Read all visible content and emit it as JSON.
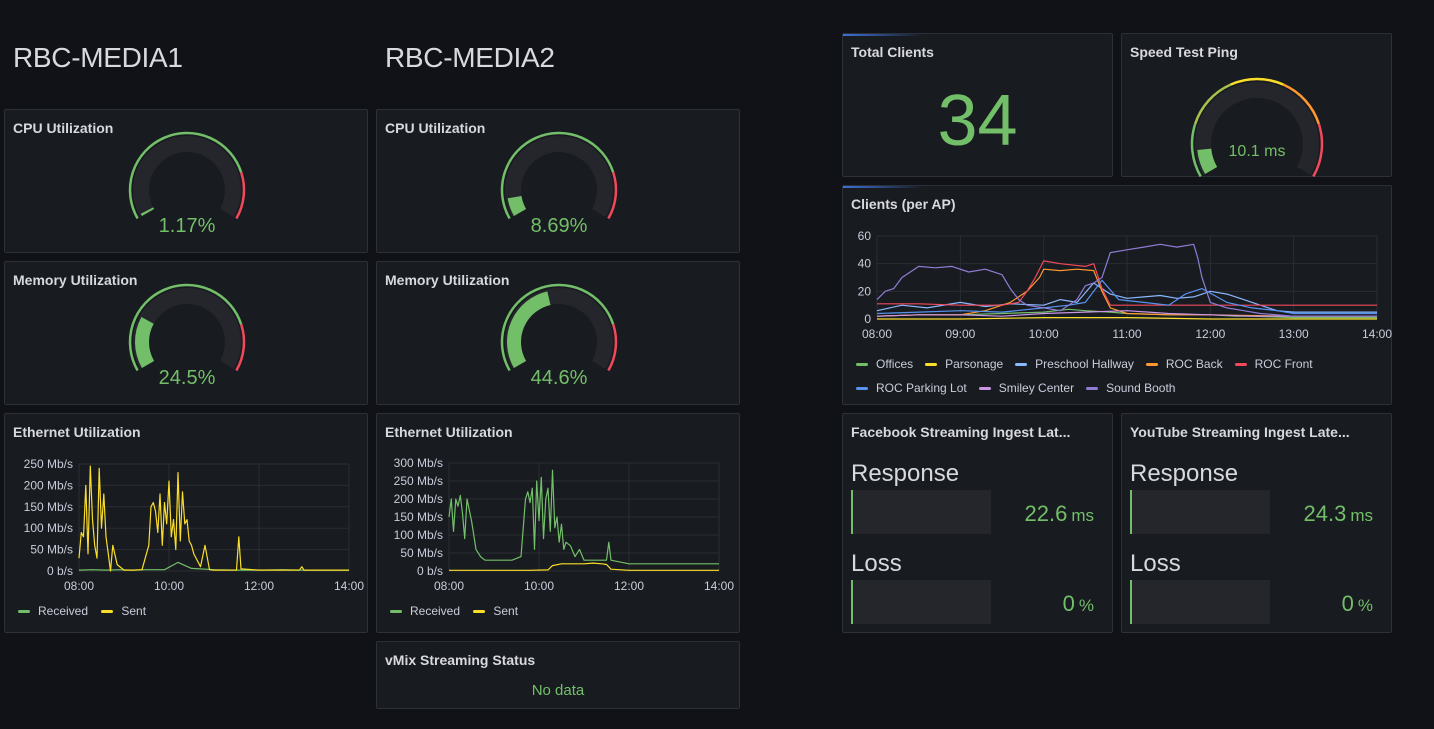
{
  "headings": {
    "media1": "RBC-MEDIA1",
    "media2": "RBC-MEDIA2"
  },
  "colors": {
    "green": "#73bf69",
    "red": "#f2495c",
    "orange": "#ff9830",
    "yellow": "#fade2a",
    "blue": "#8ab8ff"
  },
  "media1": {
    "cpu": {
      "title": "CPU Utilization",
      "value": 1.17,
      "display": "1.17%"
    },
    "mem": {
      "title": "Memory Utilization",
      "value": 24.5,
      "display": "24.5%"
    },
    "eth": {
      "title": "Ethernet Utilization",
      "chart_data": {
        "type": "line",
        "x_ticks": [
          "08:00",
          "10:00",
          "12:00",
          "14:00"
        ],
        "y_ticks": [
          "0 b/s",
          "50 Mb/s",
          "100 Mb/s",
          "150 Mb/s",
          "200 Mb/s",
          "250 Mb/s"
        ],
        "ylim": [
          0,
          250
        ],
        "xlim_hours": [
          8,
          14
        ],
        "series": [
          {
            "name": "Received",
            "color": "#73bf69",
            "x": [
              8.0,
              8.3,
              8.6,
              8.9,
              9.2,
              9.5,
              9.9,
              10.2,
              10.5,
              11.0,
              11.5,
              12.0,
              12.5,
              13.0,
              13.5,
              14.0
            ],
            "y": [
              2,
              3,
              2,
              3,
              2,
              3,
              3,
              20,
              6,
              3,
              2,
              2,
              3,
              2,
              2,
              2
            ]
          },
          {
            "name": "Sent",
            "color": "#fade2a",
            "x": [
              8.0,
              8.05,
              8.1,
              8.15,
              8.2,
              8.25,
              8.3,
              8.35,
              8.4,
              8.45,
              8.5,
              8.55,
              8.6,
              8.65,
              8.7,
              8.75,
              8.85,
              9.0,
              9.2,
              9.4,
              9.55,
              9.6,
              9.65,
              9.7,
              9.75,
              9.8,
              9.85,
              9.9,
              9.95,
              10.0,
              10.05,
              10.1,
              10.15,
              10.2,
              10.25,
              10.3,
              10.35,
              10.4,
              10.45,
              10.5,
              10.55,
              10.7,
              10.8,
              10.9,
              11.0,
              11.3,
              11.5,
              11.55,
              11.6,
              12.0,
              12.5,
              12.9,
              12.95,
              13.0,
              13.5,
              14.0
            ],
            "y": [
              30,
              90,
              80,
              200,
              40,
              245,
              120,
              60,
              30,
              240,
              100,
              180,
              80,
              40,
              0,
              60,
              15,
              2,
              2,
              3,
              60,
              150,
              160,
              140,
              90,
              180,
              60,
              160,
              110,
              210,
              80,
              120,
              50,
              230,
              70,
              185,
              110,
              120,
              70,
              60,
              40,
              10,
              60,
              3,
              2,
              2,
              2,
              80,
              5,
              2,
              2,
              2,
              10,
              2,
              2,
              2
            ]
          }
        ]
      }
    }
  },
  "media2": {
    "cpu": {
      "title": "CPU Utilization",
      "value": 8.69,
      "display": "8.69%"
    },
    "mem": {
      "title": "Memory Utilization",
      "value": 44.6,
      "display": "44.6%"
    },
    "eth": {
      "title": "Ethernet Utilization",
      "chart_data": {
        "type": "line",
        "x_ticks": [
          "08:00",
          "10:00",
          "12:00",
          "14:00"
        ],
        "y_ticks": [
          "0 b/s",
          "50 Mb/s",
          "100 Mb/s",
          "150 Mb/s",
          "200 Mb/s",
          "250 Mb/s",
          "300 Mb/s"
        ],
        "ylim": [
          0,
          300
        ],
        "xlim_hours": [
          8,
          14
        ],
        "series": [
          {
            "name": "Received",
            "color": "#73bf69",
            "x": [
              8.0,
              8.05,
              8.1,
              8.15,
              8.2,
              8.25,
              8.3,
              8.35,
              8.4,
              8.5,
              8.6,
              8.7,
              8.8,
              9.0,
              9.2,
              9.4,
              9.6,
              9.7,
              9.75,
              9.8,
              9.85,
              9.9,
              9.95,
              10.0,
              10.05,
              10.1,
              10.15,
              10.2,
              10.25,
              10.3,
              10.35,
              10.4,
              10.45,
              10.5,
              10.55,
              10.6,
              10.7,
              10.8,
              10.9,
              11.0,
              11.2,
              11.4,
              11.5,
              11.55,
              11.6,
              12.0,
              13.0,
              14.0
            ],
            "y": [
              150,
              200,
              110,
              200,
              180,
              210,
              160,
              90,
              200,
              140,
              60,
              40,
              30,
              30,
              30,
              30,
              40,
              200,
              220,
              190,
              230,
              60,
              250,
              140,
              260,
              90,
              200,
              230,
              110,
              280,
              120,
              150,
              80,
              130,
              60,
              80,
              70,
              40,
              60,
              30,
              30,
              30,
              30,
              80,
              30,
              20,
              20,
              20
            ]
          },
          {
            "name": "Sent",
            "color": "#fade2a",
            "x": [
              8.0,
              9.0,
              9.8,
              10.2,
              10.3,
              10.5,
              10.8,
              11.0,
              11.2,
              11.4,
              11.5,
              11.6,
              12.0,
              13.0,
              14.0
            ],
            "y": [
              2,
              2,
              2,
              3,
              15,
              20,
              20,
              20,
              22,
              20,
              18,
              5,
              2,
              2,
              2
            ]
          }
        ]
      }
    },
    "vmix": {
      "title": "vMix Streaming Status",
      "value": "No data"
    }
  },
  "total_clients": {
    "title": "Total Clients",
    "value": "34"
  },
  "ping": {
    "title": "Speed Test Ping",
    "value": 10.1,
    "display": "10.1 ms",
    "max": 100
  },
  "clients_per_ap": {
    "title": "Clients (per AP)",
    "chart_data": {
      "type": "line",
      "x_ticks": [
        "08:00",
        "09:00",
        "10:00",
        "11:00",
        "12:00",
        "13:00",
        "14:00"
      ],
      "y_ticks": [
        "0",
        "20",
        "40",
        "60"
      ],
      "ylim": [
        0,
        60
      ],
      "xlim_hours": [
        8,
        14
      ],
      "series": [
        {
          "name": "Offices",
          "color": "#73bf69",
          "x": [
            8.0,
            8.5,
            9.0,
            9.5,
            10.0,
            10.3,
            10.5,
            10.8,
            11.0,
            11.5,
            12.0,
            12.3,
            12.5,
            13.0,
            14.0
          ],
          "y": [
            2,
            3,
            3,
            4,
            5,
            7,
            6,
            5,
            4,
            3,
            3,
            2,
            2,
            1,
            1
          ]
        },
        {
          "name": "Parsonage",
          "color": "#fade2a",
          "x": [
            8.0,
            9.0,
            10.0,
            11.0,
            12.0,
            13.0,
            14.0
          ],
          "y": [
            0,
            0,
            1,
            1,
            0,
            0,
            0
          ]
        },
        {
          "name": "Preschool Hallway",
          "color": "#8ab8ff",
          "x": [
            8.0,
            8.3,
            8.6,
            9.0,
            9.3,
            9.6,
            10.0,
            10.2,
            10.4,
            10.6,
            10.8,
            11.0,
            11.2,
            11.4,
            11.6,
            11.8,
            12.0,
            12.2,
            12.4,
            12.6,
            12.8,
            13.0,
            14.0
          ],
          "y": [
            6,
            10,
            8,
            12,
            9,
            11,
            10,
            14,
            12,
            26,
            18,
            15,
            16,
            17,
            15,
            16,
            20,
            18,
            14,
            10,
            6,
            5,
            5
          ]
        },
        {
          "name": "ROC Back",
          "color": "#ff9830",
          "x": [
            8.0,
            8.5,
            9.0,
            9.3,
            9.6,
            9.8,
            9.95,
            10.0,
            10.2,
            10.4,
            10.6,
            10.7,
            10.8,
            11.0,
            11.5,
            12.0,
            13.0,
            14.0
          ],
          "y": [
            2,
            3,
            3,
            6,
            12,
            20,
            30,
            36,
            35,
            36,
            35,
            20,
            8,
            4,
            3,
            3,
            2,
            2
          ]
        },
        {
          "name": "ROC Front",
          "color": "#f2495c",
          "x": [
            8.0,
            8.5,
            9.0,
            9.5,
            9.7,
            9.8,
            9.9,
            10.0,
            10.2,
            10.5,
            10.6,
            10.7,
            10.8,
            11.0,
            11.5,
            12.0,
            12.5,
            13.0,
            14.0
          ],
          "y": [
            11,
            11,
            10,
            10,
            12,
            20,
            30,
            42,
            40,
            38,
            40,
            22,
            10,
            10,
            10,
            10,
            10,
            10,
            10
          ]
        },
        {
          "name": "ROC Parking Lot",
          "color": "#5794f2",
          "x": [
            8.0,
            8.5,
            9.0,
            9.5,
            10.0,
            10.3,
            10.5,
            10.7,
            10.9,
            11.2,
            11.5,
            11.7,
            11.9,
            12.2,
            12.5,
            12.8,
            13.0,
            14.0
          ],
          "y": [
            4,
            5,
            6,
            5,
            8,
            10,
            12,
            28,
            14,
            12,
            10,
            18,
            22,
            12,
            8,
            6,
            4,
            4
          ]
        },
        {
          "name": "Smiley Center",
          "color": "#ca95e5",
          "x": [
            8.0,
            8.5,
            9.0,
            9.5,
            10.0,
            10.5,
            11.0,
            11.5,
            12.0,
            12.5,
            13.0,
            14.0
          ],
          "y": [
            2,
            3,
            3,
            2,
            4,
            5,
            6,
            4,
            3,
            2,
            2,
            2
          ]
        },
        {
          "name": "Sound Booth",
          "color": "#8f7cd6",
          "x": [
            8.0,
            8.1,
            8.2,
            8.3,
            8.4,
            8.5,
            8.7,
            8.9,
            9.1,
            9.3,
            9.5,
            9.6,
            9.7,
            9.8,
            10.0,
            10.2,
            10.4,
            10.5,
            10.6,
            10.7,
            10.8,
            11.0,
            11.2,
            11.4,
            11.6,
            11.8,
            11.85,
            11.9,
            12.0,
            12.1,
            12.2,
            12.4,
            12.6,
            12.8,
            13.0,
            14.0
          ],
          "y": [
            14,
            20,
            22,
            30,
            34,
            38,
            37,
            38,
            34,
            36,
            32,
            22,
            14,
            10,
            8,
            6,
            14,
            24,
            26,
            30,
            48,
            50,
            52,
            54,
            52,
            54,
            44,
            30,
            12,
            10,
            8,
            6,
            4,
            3,
            2,
            2
          ]
        }
      ]
    }
  },
  "facebook": {
    "title": "Facebook Streaming Ingest Lat...",
    "rows": [
      {
        "label": "Response",
        "value": "22.6",
        "unit": "ms",
        "fill": 0.0
      },
      {
        "label": "Loss",
        "value": "0",
        "unit": "%",
        "fill": 0.0
      }
    ]
  },
  "youtube": {
    "title": "YouTube Streaming Ingest Late...",
    "rows": [
      {
        "label": "Response",
        "value": "24.3",
        "unit": "ms",
        "fill": 0.0
      },
      {
        "label": "Loss",
        "value": "0",
        "unit": "%",
        "fill": 0.0
      }
    ]
  }
}
